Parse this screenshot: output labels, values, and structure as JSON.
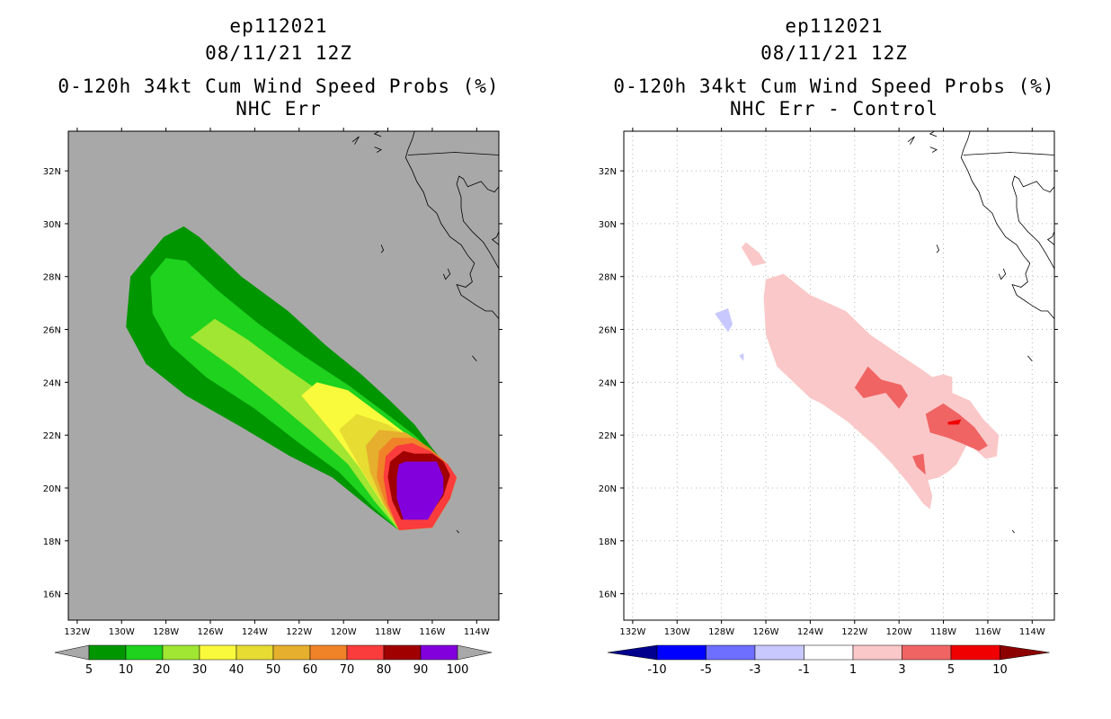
{
  "left_panel": {
    "title_line1": "ep112021",
    "title_line2": "08/11/21 12Z",
    "title_line3": "0-120h 34kt Cum Wind Speed Probs (%)",
    "title_line4": "NHC Err"
  },
  "right_panel": {
    "title_line1": "ep112021",
    "title_line2": "08/11/21 12Z",
    "title_line3": "0-120h 34kt Cum Wind Speed Probs (%)",
    "title_line4": "NHC Err - Control"
  },
  "colors": {
    "ocean_gray": "#a8a8a8",
    "coast_line": "#000000"
  },
  "chart_data": [
    {
      "type": "heatmap",
      "name": "NHC Err",
      "x_ticks": [
        "132W",
        "130W",
        "128W",
        "126W",
        "124W",
        "122W",
        "120W",
        "118W",
        "116W",
        "114W"
      ],
      "y_ticks": [
        "16N",
        "18N",
        "20N",
        "22N",
        "24N",
        "26N",
        "28N",
        "30N",
        "32N"
      ],
      "xlim": [
        -132.4,
        -113.0
      ],
      "ylim": [
        15.0,
        33.5
      ],
      "units": "%",
      "legend_levels": [
        "5",
        "10",
        "20",
        "30",
        "40",
        "50",
        "60",
        "70",
        "80",
        "90",
        "100"
      ],
      "legend_colors": [
        "#009600",
        "#1ed21e",
        "#a0e632",
        "#fafa3c",
        "#e6dc32",
        "#e6af2d",
        "#f08228",
        "#fa3c3c",
        "#a00000",
        "#8200dc"
      ],
      "contours": [
        {
          "level": 5,
          "color": "#009600",
          "polygon": [
            [
              -129.8,
              26.1
            ],
            [
              -129.6,
              28.0
            ],
            [
              -128.1,
              29.5
            ],
            [
              -127.2,
              29.9
            ],
            [
              -126.5,
              29.5
            ],
            [
              -124.6,
              28.0
            ],
            [
              -122.5,
              26.7
            ],
            [
              -120.8,
              25.4
            ],
            [
              -119.2,
              24.3
            ],
            [
              -117.9,
              23.3
            ],
            [
              -116.8,
              22.4
            ],
            [
              -116.0,
              21.5
            ],
            [
              -114.9,
              20.4
            ],
            [
              -115.2,
              19.6
            ],
            [
              -116.0,
              18.5
            ],
            [
              -117.5,
              18.4
            ],
            [
              -118.6,
              19.1
            ],
            [
              -120.5,
              20.4
            ],
            [
              -122.4,
              21.2
            ],
            [
              -124.6,
              22.3
            ],
            [
              -127.1,
              23.5
            ],
            [
              -128.9,
              24.7
            ]
          ]
        },
        {
          "level": 10,
          "color": "#1ed21e",
          "polygon": [
            [
              -128.6,
              26.6
            ],
            [
              -128.7,
              28.0
            ],
            [
              -128.0,
              28.7
            ],
            [
              -127.1,
              28.6
            ],
            [
              -125.7,
              27.5
            ],
            [
              -123.8,
              26.2
            ],
            [
              -121.8,
              25.0
            ],
            [
              -119.8,
              23.9
            ],
            [
              -118.2,
              22.9
            ],
            [
              -116.8,
              22.0
            ],
            [
              -115.7,
              21.1
            ],
            [
              -114.9,
              20.4
            ],
            [
              -115.2,
              19.6
            ],
            [
              -116.0,
              18.5
            ],
            [
              -117.5,
              18.4
            ],
            [
              -118.7,
              19.3
            ],
            [
              -120.2,
              20.6
            ],
            [
              -122.0,
              21.7
            ],
            [
              -124.0,
              23.0
            ],
            [
              -126.2,
              24.2
            ],
            [
              -127.8,
              25.4
            ]
          ]
        },
        {
          "level": 20,
          "color": "#a0e632",
          "polygon": [
            [
              -126.9,
              25.7
            ],
            [
              -125.8,
              26.4
            ],
            [
              -124.3,
              25.6
            ],
            [
              -122.7,
              24.6
            ],
            [
              -120.8,
              23.5
            ],
            [
              -118.8,
              22.5
            ],
            [
              -117.0,
              21.6
            ],
            [
              -115.7,
              21.0
            ],
            [
              -114.9,
              20.4
            ],
            [
              -115.2,
              19.6
            ],
            [
              -116.0,
              18.5
            ],
            [
              -117.5,
              18.4
            ],
            [
              -118.6,
              19.5
            ],
            [
              -119.8,
              20.9
            ],
            [
              -121.4,
              22.1
            ],
            [
              -123.1,
              23.3
            ],
            [
              -124.9,
              24.5
            ]
          ]
        },
        {
          "level": 30,
          "color": "#fafa3c",
          "polygon": [
            [
              -121.9,
              23.5
            ],
            [
              -121.2,
              24.0
            ],
            [
              -119.8,
              23.7
            ],
            [
              -118.2,
              22.7
            ],
            [
              -116.8,
              21.8
            ],
            [
              -115.6,
              21.0
            ],
            [
              -114.9,
              20.4
            ],
            [
              -115.2,
              19.6
            ],
            [
              -116.0,
              18.5
            ],
            [
              -117.5,
              18.4
            ],
            [
              -118.4,
              19.6
            ],
            [
              -119.3,
              20.8
            ],
            [
              -120.6,
              22.2
            ]
          ]
        },
        {
          "level": 40,
          "color": "#e6dc32",
          "polygon": [
            [
              -120.2,
              22.2
            ],
            [
              -119.4,
              22.8
            ],
            [
              -118.0,
              22.4
            ],
            [
              -116.6,
              21.7
            ],
            [
              -115.5,
              21.0
            ],
            [
              -114.9,
              20.4
            ],
            [
              -115.2,
              19.6
            ],
            [
              -116.0,
              18.5
            ],
            [
              -117.5,
              18.4
            ],
            [
              -118.3,
              19.5
            ],
            [
              -119.2,
              20.7
            ]
          ]
        },
        {
          "level": 50,
          "color": "#e6af2d",
          "polygon": [
            [
              -119.0,
              21.6
            ],
            [
              -118.4,
              22.2
            ],
            [
              -117.2,
              22.1
            ],
            [
              -116.3,
              21.6
            ],
            [
              -115.4,
              21.0
            ],
            [
              -114.9,
              20.4
            ],
            [
              -115.2,
              19.6
            ],
            [
              -116.0,
              18.5
            ],
            [
              -117.5,
              18.4
            ],
            [
              -118.2,
              19.4
            ],
            [
              -118.8,
              20.6
            ]
          ]
        },
        {
          "level": 60,
          "color": "#f08228",
          "polygon": [
            [
              -118.4,
              21.4
            ],
            [
              -117.8,
              21.9
            ],
            [
              -116.8,
              21.9
            ],
            [
              -116.1,
              21.5
            ],
            [
              -115.3,
              20.9
            ],
            [
              -114.9,
              20.4
            ],
            [
              -115.2,
              19.6
            ],
            [
              -116.0,
              18.5
            ],
            [
              -117.5,
              18.4
            ],
            [
              -118.1,
              19.4
            ],
            [
              -118.5,
              20.4
            ]
          ]
        },
        {
          "level": 70,
          "color": "#fa3c3c",
          "polygon": [
            [
              -118.1,
              21.2
            ],
            [
              -117.6,
              21.6
            ],
            [
              -116.9,
              21.7
            ],
            [
              -116.1,
              21.4
            ],
            [
              -115.3,
              20.9
            ],
            [
              -114.9,
              20.4
            ],
            [
              -115.2,
              19.6
            ],
            [
              -116.0,
              18.5
            ],
            [
              -117.5,
              18.4
            ],
            [
              -118.0,
              19.4
            ],
            [
              -118.2,
              20.4
            ]
          ]
        },
        {
          "level": 80,
          "color": "#a00000",
          "polygon": [
            [
              -117.9,
              21.0
            ],
            [
              -117.3,
              21.4
            ],
            [
              -116.8,
              21.3
            ],
            [
              -116.0,
              21.3
            ],
            [
              -115.5,
              21.0
            ],
            [
              -115.2,
              20.5
            ],
            [
              -115.5,
              19.7
            ],
            [
              -116.2,
              18.9
            ],
            [
              -117.4,
              18.8
            ],
            [
              -117.8,
              19.5
            ],
            [
              -118.0,
              20.4
            ]
          ]
        },
        {
          "level": 90,
          "color": "#8200dc",
          "polygon": [
            [
              -117.5,
              20.9
            ],
            [
              -117.2,
              21.0
            ],
            [
              -115.8,
              21.0
            ],
            [
              -115.5,
              20.4
            ],
            [
              -115.5,
              19.8
            ],
            [
              -116.2,
              18.8
            ],
            [
              -117.3,
              18.8
            ],
            [
              -117.6,
              19.6
            ],
            [
              -117.6,
              20.4
            ]
          ]
        }
      ]
    },
    {
      "type": "heatmap",
      "name": "NHC Err - Control",
      "x_ticks": [
        "132W",
        "130W",
        "128W",
        "126W",
        "124W",
        "122W",
        "120W",
        "118W",
        "116W",
        "114W"
      ],
      "y_ticks": [
        "16N",
        "18N",
        "20N",
        "22N",
        "24N",
        "26N",
        "28N",
        "30N",
        "32N"
      ],
      "xlim": [
        -132.4,
        -113.0
      ],
      "ylim": [
        15.0,
        33.5
      ],
      "units": "%",
      "legend_levels": [
        "-10",
        "-5",
        "-3",
        "-1",
        "1",
        "3",
        "5",
        "10"
      ],
      "legend_colors": [
        "#00008c",
        "#0000ff",
        "#6e6eff",
        "#c8c8ff",
        "#ffffff",
        "#fac8c8",
        "#f06464",
        "#f00000",
        "#8c0000"
      ],
      "contours": [
        {
          "level": 1,
          "color": "#fac8c8",
          "polygon": [
            [
              -127.1,
              29.1
            ],
            [
              -126.9,
              29.3
            ],
            [
              -126.3,
              28.9
            ],
            [
              -126.0,
              28.5
            ],
            [
              -126.6,
              28.4
            ]
          ]
        },
        {
          "level": 1,
          "color": "#fac8c8",
          "polygon": [
            [
              -126.0,
              27.9
            ],
            [
              -125.2,
              28.1
            ],
            [
              -124.0,
              27.3
            ],
            [
              -122.4,
              26.7
            ],
            [
              -121.3,
              25.8
            ],
            [
              -119.9,
              25.0
            ],
            [
              -119.0,
              24.5
            ],
            [
              -118.5,
              24.2
            ],
            [
              -118.0,
              24.3
            ],
            [
              -117.6,
              24.2
            ],
            [
              -117.6,
              23.6
            ],
            [
              -116.8,
              23.3
            ],
            [
              -116.2,
              22.6
            ],
            [
              -115.5,
              22.0
            ],
            [
              -115.6,
              21.2
            ],
            [
              -116.1,
              21.1
            ],
            [
              -116.9,
              21.7
            ],
            [
              -117.4,
              20.9
            ],
            [
              -117.8,
              20.6
            ],
            [
              -118.2,
              20.4
            ],
            [
              -118.7,
              20.3
            ],
            [
              -118.5,
              19.7
            ],
            [
              -118.6,
              19.2
            ],
            [
              -118.9,
              19.4
            ],
            [
              -119.6,
              20.2
            ],
            [
              -120.3,
              20.9
            ],
            [
              -121.1,
              21.6
            ],
            [
              -122.3,
              22.5
            ],
            [
              -123.5,
              23.2
            ],
            [
              -124.0,
              23.4
            ],
            [
              -125.5,
              24.6
            ],
            [
              -126.0,
              25.8
            ],
            [
              -126.1,
              27.2
            ]
          ]
        },
        {
          "level": 3,
          "color": "#f06464",
          "polygon": [
            [
              -122.0,
              23.8
            ],
            [
              -121.4,
              24.6
            ],
            [
              -120.8,
              24.1
            ],
            [
              -119.9,
              23.9
            ],
            [
              -119.6,
              23.5
            ],
            [
              -120.0,
              23.0
            ],
            [
              -120.6,
              23.6
            ],
            [
              -121.6,
              23.4
            ]
          ]
        },
        {
          "level": 3,
          "color": "#f06464",
          "polygon": [
            [
              -118.8,
              22.8
            ],
            [
              -118.0,
              23.2
            ],
            [
              -117.3,
              22.8
            ],
            [
              -116.6,
              22.3
            ],
            [
              -116.0,
              21.6
            ],
            [
              -116.4,
              21.4
            ],
            [
              -117.2,
              21.7
            ],
            [
              -117.8,
              21.9
            ],
            [
              -118.6,
              22.1
            ]
          ]
        },
        {
          "level": 3,
          "color": "#f06464",
          "polygon": [
            [
              -119.4,
              21.2
            ],
            [
              -118.9,
              21.3
            ],
            [
              -118.8,
              20.5
            ],
            [
              -119.2,
              20.8
            ]
          ]
        },
        {
          "level": 5,
          "color": "#f00000",
          "polygon": [
            [
              -117.8,
              22.5
            ],
            [
              -117.2,
              22.6
            ],
            [
              -117.3,
              22.4
            ],
            [
              -117.8,
              22.4
            ]
          ]
        },
        {
          "level": -1,
          "color": "#c8c8ff",
          "polygon": [
            [
              -128.3,
              26.6
            ],
            [
              -127.7,
              26.8
            ],
            [
              -127.5,
              26.2
            ],
            [
              -127.7,
              25.9
            ]
          ]
        },
        {
          "level": -1,
          "color": "#c8c8ff",
          "polygon": [
            [
              -127.2,
              25.0
            ],
            [
              -127.0,
              25.1
            ],
            [
              -127.0,
              24.8
            ]
          ]
        }
      ]
    }
  ]
}
